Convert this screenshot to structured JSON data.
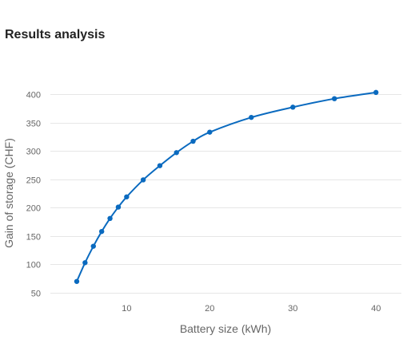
{
  "page": {
    "title": "Results analysis"
  },
  "colors": {
    "series": "#0a6abf",
    "grid": "#e6e6e6",
    "text": "#666666"
  },
  "chart_data": {
    "type": "line",
    "title": "",
    "xlabel": "Battery size (kWh)",
    "ylabel": "Gain of storage (CHF)",
    "xlim": [
      1.5,
      42
    ],
    "ylim": [
      50,
      400
    ],
    "xticks": [
      10,
      20,
      30,
      40
    ],
    "yticks": [
      50,
      100,
      150,
      200,
      250,
      300,
      350,
      400
    ],
    "grid": true,
    "legend": "none",
    "series": [
      {
        "x": [
          4,
          5,
          6,
          7,
          8,
          9,
          10,
          12,
          14,
          16,
          18,
          20,
          25,
          30,
          35,
          40
        ],
        "y": [
          70,
          103,
          132,
          158,
          181,
          201,
          219,
          249,
          274,
          297,
          317,
          333,
          359,
          377,
          392,
          403
        ]
      }
    ]
  }
}
